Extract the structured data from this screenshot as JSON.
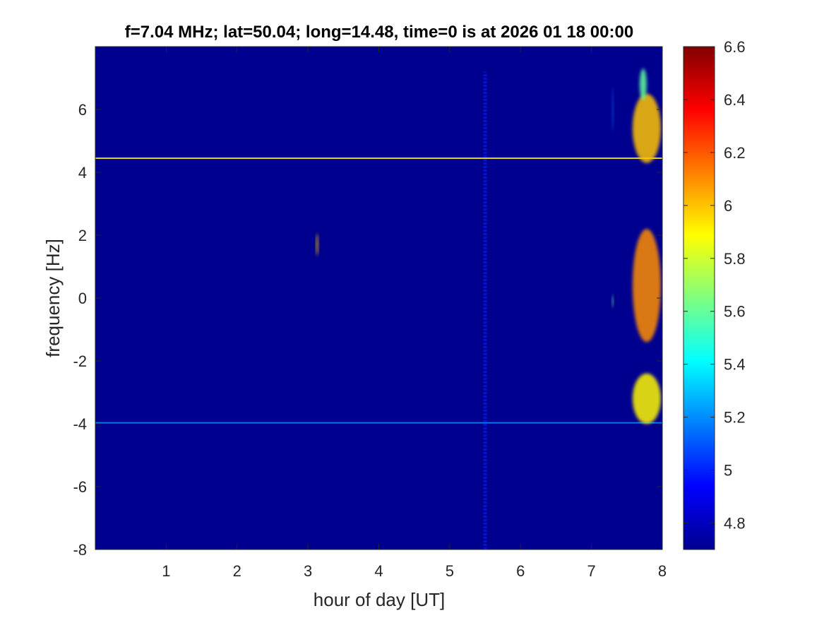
{
  "chart_data": {
    "type": "heatmap",
    "title": "f=7.04 MHz;  lat=50.04; long=14.48, time=0 is at 2026 01 18 00:00",
    "xlabel": "hour of day [UT]",
    "ylabel": "frequency [Hz]",
    "xlim": [
      0,
      8
    ],
    "ylim": [
      -8,
      8
    ],
    "xticks": [
      "1",
      "2",
      "3",
      "4",
      "5",
      "6",
      "7",
      "8"
    ],
    "xtick_values": [
      1,
      2,
      3,
      4,
      5,
      6,
      7,
      8
    ],
    "yticks": [
      "-8",
      "-6",
      "-4",
      "-2",
      "0",
      "2",
      "4",
      "6"
    ],
    "ytick_values": [
      -8,
      -6,
      -4,
      -2,
      0,
      2,
      4,
      6
    ],
    "colorbar": {
      "range": [
        4.7,
        6.6
      ],
      "ticks": [
        "4.8",
        "5",
        "5.2",
        "5.4",
        "5.6",
        "5.8",
        "6",
        "6.2",
        "6.4",
        "6.6"
      ],
      "tick_values": [
        4.8,
        5.0,
        5.2,
        5.4,
        5.6,
        5.8,
        6.0,
        6.2,
        6.4,
        6.6
      ],
      "colormap": "jet"
    },
    "background_value": 4.75,
    "features": [
      {
        "kind": "horizontal_line",
        "y": 4.45,
        "x_range": [
          0,
          8
        ],
        "value": 5.9
      },
      {
        "kind": "horizontal_line",
        "y": -3.97,
        "x_range": [
          0,
          8
        ],
        "value": 5.2
      },
      {
        "kind": "vertical_band",
        "x": 5.5,
        "y_range": [
          -8,
          7.2
        ],
        "value": 5.0
      },
      {
        "kind": "blob",
        "x": 3.13,
        "y": 1.7,
        "w": 0.03,
        "h": 0.7,
        "value": 6.0
      },
      {
        "kind": "blob",
        "x": 7.3,
        "y": -0.1,
        "w": 0.02,
        "h": 0.4,
        "value": 5.6
      },
      {
        "kind": "blob",
        "x": 7.3,
        "y": 6.0,
        "w": 0.02,
        "h": 1.4,
        "value": 5.1
      },
      {
        "kind": "blob",
        "x": 7.78,
        "y": 5.4,
        "w": 0.4,
        "h": 2.2,
        "value": 6.0
      },
      {
        "kind": "blob",
        "x": 7.73,
        "y": 6.8,
        "w": 0.1,
        "h": 1.0,
        "value": 5.6
      },
      {
        "kind": "blob",
        "x": 7.78,
        "y": 0.4,
        "w": 0.4,
        "h": 3.6,
        "value": 6.1
      },
      {
        "kind": "blob",
        "x": 7.78,
        "y": -3.2,
        "w": 0.4,
        "h": 1.6,
        "value": 5.9
      }
    ]
  }
}
